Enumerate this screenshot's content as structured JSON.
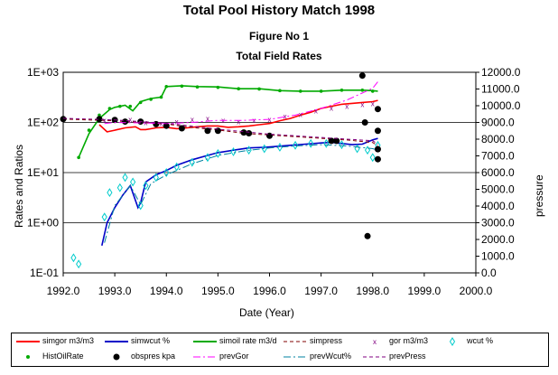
{
  "title": "Total Pool History Match 1998",
  "subtitle": "Figure No  1",
  "subtitle2": "Total Field Rates",
  "chart_data": {
    "type": "scatter",
    "xlabel": "Date (Year)",
    "ylabel_left": "Rates and Ratios",
    "ylabel_right": "pressure",
    "xlim": [
      1992.0,
      2000.0
    ],
    "xticks": [
      "1992.0",
      "1993.0",
      "1994.0",
      "1995.0",
      "1996.0",
      "1997.0",
      "1998.0",
      "1999.0",
      "2000.0"
    ],
    "ylim_left": [
      0.1,
      1000
    ],
    "left_scale": "log",
    "yticks_left": [
      "1E+03",
      "1E+02",
      "1E+01",
      "1E+00",
      "1E-01"
    ],
    "ylim_right": [
      0,
      12000
    ],
    "yticks_right": [
      "12000.0",
      "11000.0",
      "10000.0",
      "9000.0",
      "8000.0",
      "7000.0",
      "6000.0",
      "5000.0",
      "4000.0",
      "3000.0",
      "2000.0",
      "1000.0",
      "0.0"
    ],
    "grid": "horizontal major lines",
    "legend_position": "bottom",
    "series": [
      {
        "name": "simgor m3/m3",
        "axis": "left",
        "style": "line",
        "color": "#ff0000",
        "x": [
          1992.7,
          1992.85,
          1993.0,
          1993.2,
          1993.4,
          1993.5,
          1993.6,
          1993.8,
          1994.0,
          1994.2,
          1994.4,
          1994.6,
          1994.8,
          1995.0,
          1995.2,
          1995.4,
          1995.6,
          1995.8,
          1996.0,
          1996.2,
          1996.4,
          1996.6,
          1996.8,
          1997.0,
          1997.2,
          1997.4,
          1997.6,
          1997.8,
          1998.0,
          1998.1
        ],
        "y": [
          90,
          65,
          70,
          78,
          82,
          72,
          72,
          78,
          80,
          75,
          78,
          82,
          85,
          85,
          80,
          82,
          85,
          90,
          95,
          108,
          120,
          140,
          160,
          190,
          210,
          230,
          240,
          250,
          260,
          275
        ]
      },
      {
        "name": "simwcut %",
        "axis": "left",
        "style": "line",
        "color": "#0000c8",
        "x": [
          1992.75,
          1992.85,
          1993.0,
          1993.15,
          1993.3,
          1993.45,
          1993.5,
          1993.6,
          1993.8,
          1994.0,
          1994.2,
          1994.5,
          1994.8,
          1995.0,
          1995.3,
          1995.6,
          1995.9,
          1996.1,
          1996.4,
          1996.7,
          1997.0,
          1997.2,
          1997.4,
          1997.6,
          1997.8,
          1998.0,
          1998.1
        ],
        "y": [
          0.35,
          1.0,
          2.0,
          3.5,
          5.5,
          2.0,
          2.5,
          6.5,
          9,
          11,
          14,
          18,
          22,
          25,
          28,
          31,
          32,
          33,
          35,
          37,
          39,
          40,
          38,
          36,
          37,
          45,
          48
        ]
      },
      {
        "name": "simoil rate m3/d",
        "axis": "left",
        "style": "line",
        "color": "#00aa00",
        "x": [
          1992.3,
          1992.5,
          1992.7,
          1992.9,
          1993.0,
          1993.2,
          1993.35,
          1993.5,
          1993.7,
          1993.9,
          1994.0,
          1994.3,
          1994.6,
          1995.0,
          1995.4,
          1995.8,
          1996.2,
          1996.6,
          1997.0,
          1997.4,
          1997.8,
          1998.0,
          1998.1
        ],
        "y": [
          20,
          60,
          120,
          180,
          200,
          220,
          170,
          260,
          300,
          320,
          520,
          540,
          520,
          510,
          470,
          470,
          430,
          420,
          420,
          440,
          440,
          430,
          420
        ]
      },
      {
        "name": "simpress",
        "axis": "right",
        "style": "dashed",
        "color": "#800000",
        "x": [
          1992.0,
          1992.5,
          1993.0,
          1993.5,
          1994.0,
          1994.5,
          1995.0,
          1995.5,
          1996.0,
          1996.5,
          1997.0,
          1997.5,
          1998.0,
          1998.1
        ],
        "y": [
          9200,
          9150,
          9100,
          9000,
          8900,
          8700,
          8550,
          8350,
          8250,
          8150,
          8050,
          7950,
          7800,
          7600
        ]
      },
      {
        "name": "gor m3/m3",
        "axis": "left",
        "style": "marker",
        "color": "#800080",
        "x": [
          1992.8,
          1993.0,
          1993.3,
          1993.6,
          1993.9,
          1994.2,
          1994.5,
          1994.8,
          1995.1,
          1995.4,
          1995.7,
          1996.0,
          1996.3,
          1996.6,
          1996.9,
          1997.2,
          1997.5,
          1997.8,
          1998.0
        ],
        "y": [
          110,
          120,
          115,
          100,
          95,
          105,
          115,
          120,
          110,
          105,
          110,
          115,
          135,
          145,
          170,
          195,
          210,
          230,
          240
        ]
      },
      {
        "name": "wcut %",
        "axis": "left",
        "style": "marker",
        "color": "#00cccc",
        "x": [
          1992.2,
          1992.3,
          1992.8,
          1992.9,
          1993.1,
          1993.2,
          1993.35,
          1993.5,
          1993.6,
          1993.8,
          1994.0,
          1994.2,
          1994.5,
          1994.8,
          1995.0,
          1995.3,
          1995.6,
          1995.9,
          1996.2,
          1996.5,
          1996.8,
          1997.1,
          1997.4,
          1997.7,
          1997.9,
          1998.0,
          1998.1
        ],
        "y": [
          0.2,
          0.15,
          1.3,
          4,
          5,
          8,
          6.5,
          2.2,
          5.5,
          8,
          10,
          13,
          16,
          20,
          24,
          26,
          28,
          30,
          32,
          35,
          38,
          38,
          36,
          30,
          28,
          20,
          35
        ]
      },
      {
        "name": "HistOilRate",
        "axis": "left",
        "style": "marker",
        "color": "#00aa00",
        "x": [
          1992.3,
          1992.5,
          1992.7,
          1992.9,
          1993.1,
          1993.3,
          1993.5,
          1993.7,
          1993.9,
          1994.0,
          1994.3,
          1994.6,
          1995.0,
          1995.4,
          1995.8,
          1996.2,
          1996.6,
          1997.0,
          1997.4,
          1997.8,
          1998.0
        ],
        "y": [
          20,
          70,
          140,
          190,
          210,
          210,
          250,
          290,
          320,
          520,
          530,
          510,
          500,
          470,
          465,
          430,
          420,
          420,
          440,
          440,
          420
        ]
      },
      {
        "name": "obspres kpa",
        "axis": "right",
        "style": "marker",
        "color": "#000000",
        "x": [
          1992.0,
          1992.7,
          1993.0,
          1993.2,
          1993.5,
          1993.8,
          1994.0,
          1994.3,
          1994.8,
          1995.0,
          1995.5,
          1995.6,
          1996.0,
          1997.2,
          1997.3,
          1997.8,
          1997.85,
          1997.9,
          1998.1,
          1998.1,
          1998.1,
          1998.1
        ],
        "y": [
          9200,
          9200,
          9150,
          9050,
          9050,
          8900,
          8800,
          8650,
          8500,
          8500,
          8400,
          8350,
          8200,
          7900,
          7900,
          11800,
          9000,
          2200,
          9800,
          8500,
          7400,
          6800
        ]
      },
      {
        "name": "prevGor",
        "axis": "left",
        "style": "dashdot",
        "color": "#ff00ff",
        "x": [
          1992.8,
          1993.0,
          1993.5,
          1994.0,
          1994.5,
          1995.0,
          1995.5,
          1996.0,
          1996.5,
          1997.0,
          1997.5,
          1998.0,
          1998.1
        ],
        "y": [
          95,
          100,
          98,
          95,
          100,
          110,
          110,
          115,
          140,
          190,
          280,
          480,
          650
        ]
      },
      {
        "name": "prevWcut%",
        "axis": "left",
        "style": "dashdot",
        "color": "#0080a0",
        "x": [
          1992.8,
          1993.0,
          1993.3,
          1993.5,
          1993.7,
          1994.0,
          1994.5,
          1995.0,
          1995.5,
          1996.0,
          1996.5,
          1997.0,
          1997.5,
          1998.0,
          1998.1
        ],
        "y": [
          0.4,
          2.2,
          5.5,
          2.3,
          6,
          9,
          15,
          22,
          27,
          31,
          34,
          36,
          34,
          30,
          28
        ]
      },
      {
        "name": "prevPress",
        "axis": "right",
        "style": "dashed",
        "color": "#800080",
        "x": [
          1992.0,
          1993.0,
          1994.0,
          1995.0,
          1996.0,
          1997.0,
          1998.0,
          1998.1
        ],
        "y": [
          9250,
          9150,
          8950,
          8600,
          8300,
          8100,
          7900,
          7700
        ]
      }
    ]
  }
}
